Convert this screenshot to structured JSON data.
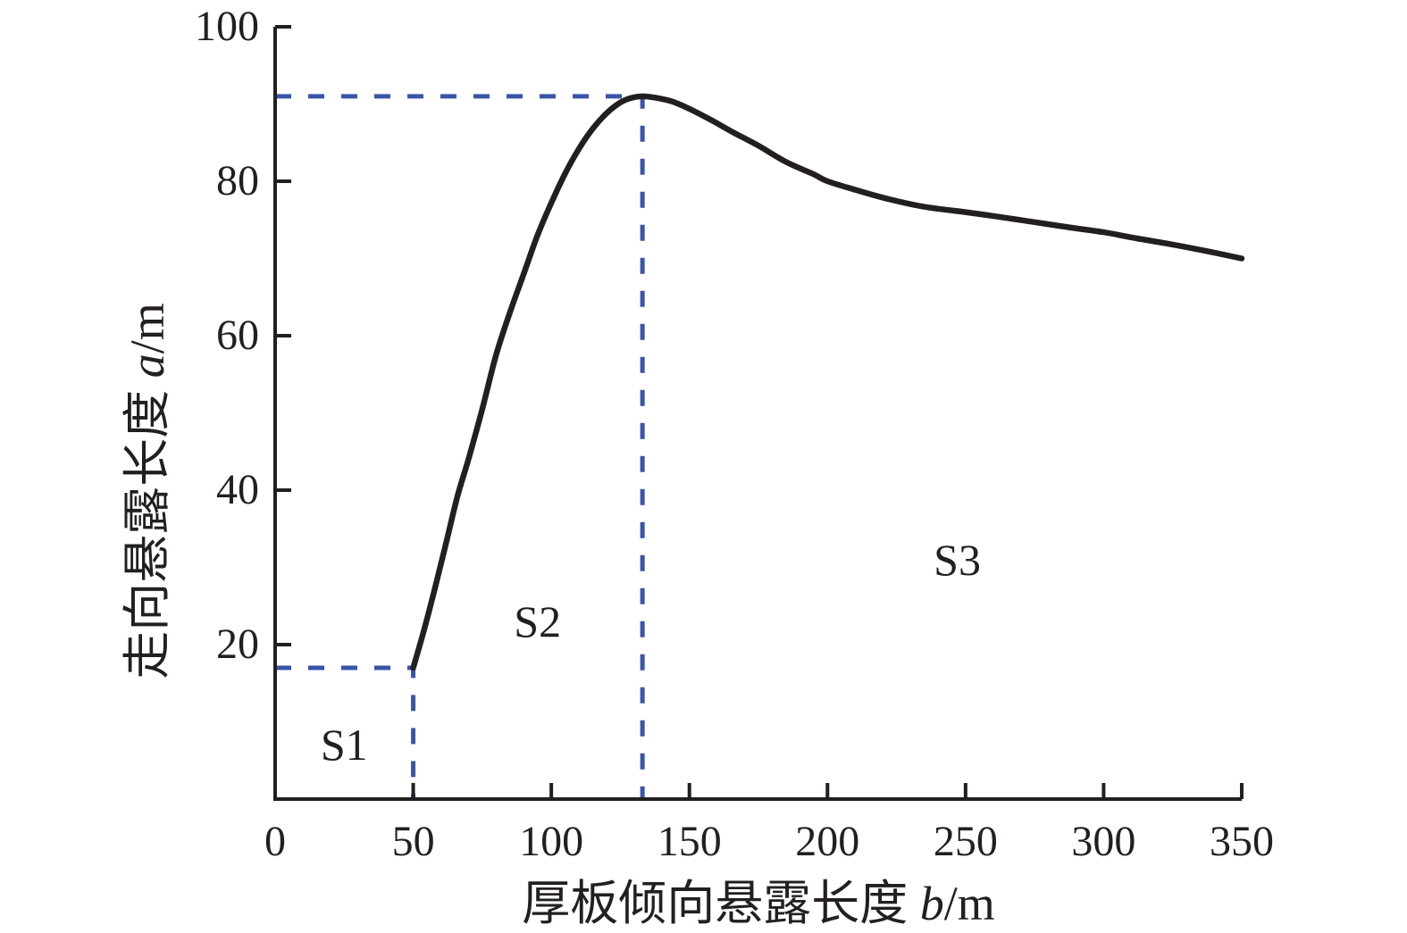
{
  "figure": {
    "background": "#ffffff",
    "axis_color": "#231f20",
    "text_color": "#231f20",
    "curve_color": "#231f20",
    "guide_color": "#3a55a8"
  },
  "chart_data": {
    "type": "line",
    "title": "",
    "xlabel": {
      "prefix": "厚板倾向悬露长度 ",
      "variable": "b",
      "unit": "/m"
    },
    "ylabel": {
      "prefix": "走向悬露长度 ",
      "variable": "a",
      "unit": "/m"
    },
    "xlim": [
      0,
      350
    ],
    "ylim": [
      0,
      100
    ],
    "x_ticks": [
      0,
      50,
      100,
      150,
      200,
      250,
      300,
      350
    ],
    "y_ticks": [
      20,
      40,
      60,
      80,
      100
    ],
    "grid": false,
    "legend": false,
    "series": [
      {
        "name": "strike-overhang-vs-dip-overhang-curve",
        "color": "#231f20",
        "points": [
          [
            50,
            17
          ],
          [
            54,
            22
          ],
          [
            58,
            27.5
          ],
          [
            62,
            33.3
          ],
          [
            66,
            39.2
          ],
          [
            70,
            44
          ],
          [
            75,
            50.5
          ],
          [
            80,
            57.5
          ],
          [
            85,
            63
          ],
          [
            90,
            68
          ],
          [
            95,
            73
          ],
          [
            100,
            77.2
          ],
          [
            105,
            81
          ],
          [
            110,
            84.2
          ],
          [
            115,
            86.8
          ],
          [
            120,
            88.8
          ],
          [
            125,
            90.2
          ],
          [
            129,
            90.8
          ],
          [
            133,
            91
          ],
          [
            138,
            90.8
          ],
          [
            144,
            90.3
          ],
          [
            151,
            89.2
          ],
          [
            158,
            87.9
          ],
          [
            166,
            86.3
          ],
          [
            175,
            84.6
          ],
          [
            185,
            82.5
          ],
          [
            195,
            80.9
          ],
          [
            200,
            80
          ],
          [
            210,
            78.9
          ],
          [
            222,
            77.7
          ],
          [
            235,
            76.7
          ],
          [
            250,
            76
          ],
          [
            262,
            75.4
          ],
          [
            275,
            74.7
          ],
          [
            288,
            74
          ],
          [
            300,
            73.4
          ],
          [
            312,
            72.6
          ],
          [
            325,
            71.8
          ],
          [
            338,
            70.9
          ],
          [
            350,
            70
          ]
        ]
      }
    ],
    "guides": [
      {
        "x": 50,
        "y": 17,
        "color": "#3a55a8",
        "style": "dashed"
      },
      {
        "x": 133,
        "y": 91,
        "color": "#3a55a8",
        "style": "dashed"
      }
    ],
    "region_labels": [
      {
        "text": "S1",
        "x": 25,
        "y": 7
      },
      {
        "text": "S2",
        "x": 95,
        "y": 23
      },
      {
        "text": "S3",
        "x": 247,
        "y": 31
      }
    ]
  }
}
